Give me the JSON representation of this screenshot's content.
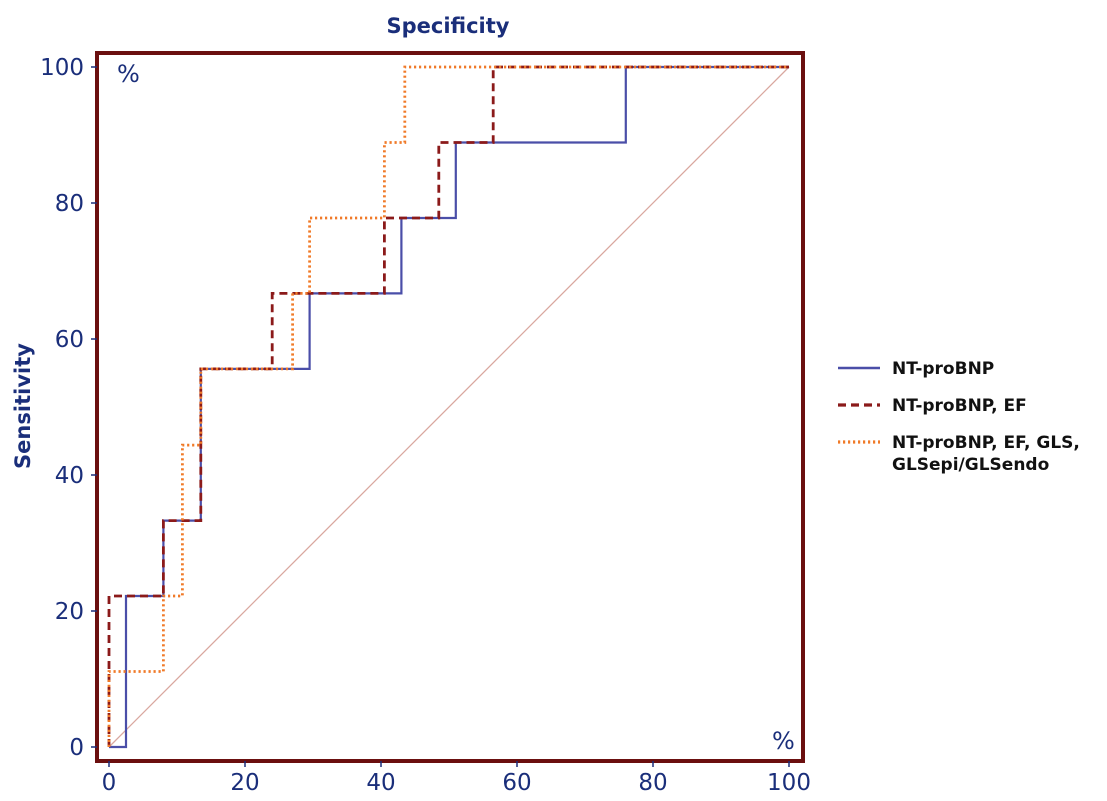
{
  "chart_data": {
    "type": "line",
    "title": "Specificity",
    "xlabel": "",
    "ylabel": "Sensitivity",
    "corner_label_top_left": "%",
    "corner_label_bottom_right": "%",
    "xlim": [
      0,
      100
    ],
    "ylim": [
      0,
      100
    ],
    "xticks": [
      0,
      20,
      40,
      60,
      80,
      100
    ],
    "yticks": [
      0,
      20,
      40,
      60,
      80,
      100
    ],
    "grid": false,
    "legend_position": "right",
    "colors": {
      "frame": "#6b0f0f",
      "axis_text": "#1a2e7a",
      "diagonal": "#d9a8a0"
    },
    "reference_line": {
      "x": [
        0,
        100
      ],
      "y": [
        0,
        100
      ]
    },
    "series": [
      {
        "name": "NT-proBNP",
        "style": "solid",
        "color": "#4a4ea8",
        "x": [
          0,
          2.5,
          2.5,
          8,
          8,
          13.5,
          13.5,
          29.5,
          29.5,
          43,
          43,
          51,
          51,
          76,
          76,
          100
        ],
        "y": [
          0,
          0,
          22.2,
          22.2,
          33.3,
          33.3,
          55.6,
          55.6,
          66.7,
          66.7,
          77.8,
          77.8,
          88.9,
          88.9,
          100,
          100
        ]
      },
      {
        "name": "NT-proBNP, EF",
        "style": "dashed",
        "color": "#8b1a1a",
        "x": [
          0,
          0,
          8,
          8,
          13.5,
          13.5,
          16,
          16,
          24,
          24,
          40.5,
          40.5,
          48.5,
          48.5,
          56.5,
          56.5,
          100
        ],
        "y": [
          0,
          22.2,
          22.2,
          33.3,
          33.3,
          55.6,
          55.6,
          55.6,
          55.6,
          66.7,
          66.7,
          77.8,
          77.8,
          88.9,
          88.9,
          100,
          100
        ]
      },
      {
        "name": "NT-proBNP, EF, GLS,\nGLSepi/GLSendo",
        "name_lines": [
          "NT-proBNP, EF, GLS,",
          "GLSepi/GLSendo"
        ],
        "style": "dotted",
        "color": "#f07a28",
        "x": [
          0,
          0,
          8,
          8,
          10.8,
          10.8,
          13.5,
          13.5,
          27,
          27,
          29.5,
          29.5,
          40.5,
          40.5,
          43.5,
          43.5,
          100
        ],
        "y": [
          0,
          11.1,
          11.1,
          22.2,
          22.2,
          44.4,
          44.4,
          55.6,
          55.6,
          66.7,
          66.7,
          77.8,
          77.8,
          88.9,
          88.9,
          100,
          100
        ]
      }
    ]
  }
}
